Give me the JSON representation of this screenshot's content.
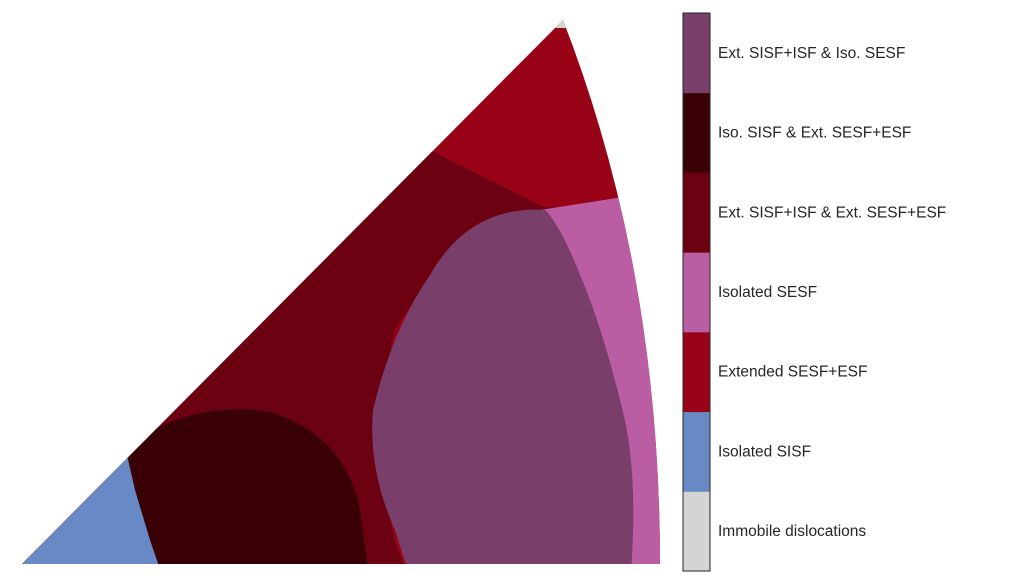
{
  "chart_data": {
    "type": "heatmap",
    "title": "",
    "xlabel": "",
    "ylabel": "",
    "grid": false,
    "legend_placement": "right",
    "series": [
      {
        "name": "Immobile dislocations",
        "color": "#d4d4d4"
      },
      {
        "name": "Isolated SISF",
        "color": "#6789c6"
      },
      {
        "name": "Extended SESF+ESF",
        "color": "#980317"
      },
      {
        "name": "Isolated SESF",
        "color": "#bb5da2"
      },
      {
        "name": "Ext. SISF+ISF & Ext. SESF+ESF",
        "color": "#6c0211"
      },
      {
        "name": "Iso. SISF & Ext. SESF+ESF",
        "color": "#390006"
      },
      {
        "name": "Ext. SISF+ISF & Iso. SESF",
        "color": "#7a3e6b"
      }
    ]
  }
}
